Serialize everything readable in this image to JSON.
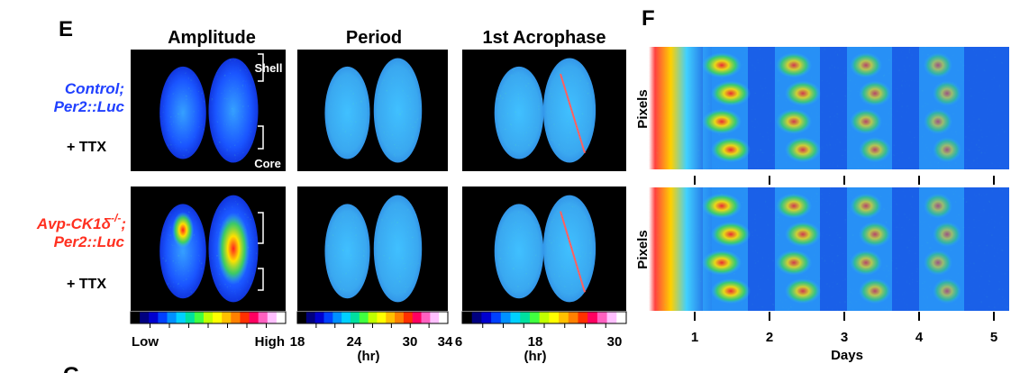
{
  "panel_e": {
    "label": "E",
    "columns": [
      "Amplitude",
      "Period",
      "1st Acrophase"
    ],
    "rows": [
      {
        "genotype": {
          "text": "Control;"
        },
        "reporter": "Per2::Luc",
        "treatment": "+ TTX"
      },
      {
        "genotype": {
          "text": "Avp-CK1δ",
          "sup": "-/-",
          "suffix": ";"
        },
        "reporter": "Per2::Luc",
        "treatment": "+ TTX"
      }
    ],
    "regions": [
      "Shell",
      "Core"
    ],
    "colorbars": [
      {
        "labels": [
          "Low",
          "High"
        ]
      },
      {
        "ticks": [
          18,
          24,
          30,
          34
        ],
        "unit": "(hr)"
      },
      {
        "ticks": [
          6,
          18,
          30
        ],
        "unit": "(hr)"
      }
    ]
  },
  "panel_f": {
    "label": "F",
    "y_labels": [
      "Pixels",
      "Pixels"
    ],
    "x_ticks": [
      1,
      2,
      3,
      4,
      5
    ],
    "x_label": "Days"
  },
  "panel_g": {
    "label": "G"
  }
}
